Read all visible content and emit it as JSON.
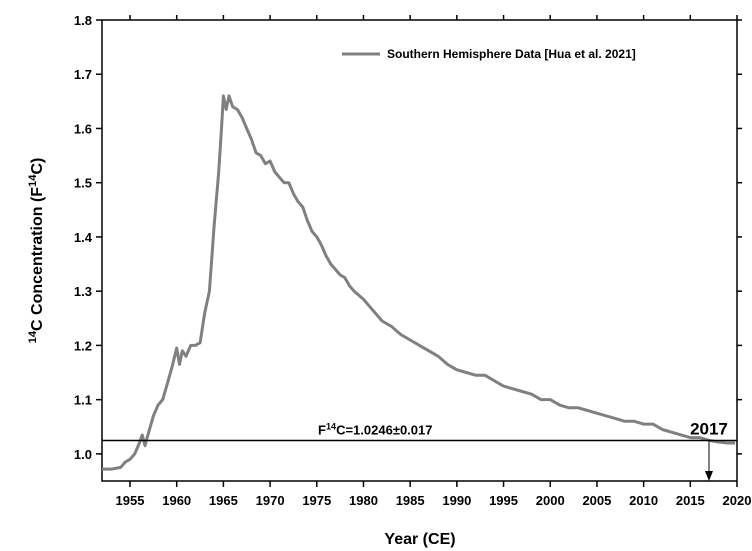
{
  "chart_data": {
    "type": "line",
    "xlabel": "Year (CE)",
    "ylabel": [
      {
        "text": "14",
        "sup": true
      },
      {
        "text": "C Concentration (F",
        "sup": false
      },
      {
        "text": "14",
        "sup": true
      },
      {
        "text": "C)",
        "sup": false
      }
    ],
    "xlim": [
      1952,
      2020
    ],
    "ylim": [
      0.95,
      1.8
    ],
    "xticks": [
      1955,
      1960,
      1965,
      1970,
      1975,
      1980,
      1985,
      1990,
      1995,
      2000,
      2005,
      2010,
      2015,
      2020
    ],
    "yticks": [
      {
        "value": 1,
        "label": "1.0"
      },
      1.1,
      1.2,
      1.3,
      1.4,
      1.5,
      1.6,
      1.7,
      {
        "value": 1.8,
        "label": "1.8"
      }
    ],
    "legend": "top-right",
    "series": [
      {
        "name": "Southern Hemisphere Data [Hua et al. 2021]",
        "color": "#808080",
        "x": [
          1952,
          1953,
          1954,
          1954.5,
          1955,
          1955.5,
          1956,
          1956.3,
          1956.6,
          1957,
          1957.5,
          1958,
          1958.5,
          1959,
          1959.5,
          1960,
          1960.3,
          1960.6,
          1961,
          1961.5,
          1962,
          1962.5,
          1963,
          1963.5,
          1964,
          1964.5,
          1964.8,
          1965,
          1965.3,
          1965.6,
          1966,
          1966.5,
          1967,
          1967.5,
          1968,
          1968.5,
          1969,
          1969.5,
          1970,
          1970.5,
          1971,
          1971.5,
          1972,
          1972.5,
          1973,
          1973.5,
          1974,
          1974.5,
          1975,
          1975.5,
          1976,
          1976.5,
          1977,
          1977.5,
          1978,
          1978.5,
          1979,
          1980,
          1981,
          1982,
          1983,
          1984,
          1985,
          1986,
          1987,
          1988,
          1989,
          1990,
          1991,
          1992,
          1993,
          1994,
          1995,
          1996,
          1997,
          1998,
          1999,
          2000,
          2001,
          2002,
          2003,
          2004,
          2005,
          2006,
          2007,
          2008,
          2009,
          2010,
          2011,
          2012,
          2013,
          2014,
          2015,
          2016,
          2017,
          2018,
          2019,
          2019.8
        ],
        "values": [
          0.972,
          0.972,
          0.975,
          0.985,
          0.99,
          1.0,
          1.02,
          1.035,
          1.015,
          1.04,
          1.07,
          1.09,
          1.1,
          1.13,
          1.16,
          1.195,
          1.165,
          1.19,
          1.18,
          1.2,
          1.2,
          1.205,
          1.26,
          1.3,
          1.42,
          1.52,
          1.6,
          1.66,
          1.635,
          1.66,
          1.64,
          1.635,
          1.62,
          1.6,
          1.58,
          1.555,
          1.55,
          1.535,
          1.54,
          1.52,
          1.51,
          1.5,
          1.5,
          1.48,
          1.465,
          1.455,
          1.43,
          1.41,
          1.4,
          1.385,
          1.365,
          1.35,
          1.34,
          1.33,
          1.325,
          1.31,
          1.3,
          1.285,
          1.265,
          1.245,
          1.235,
          1.22,
          1.21,
          1.2,
          1.19,
          1.18,
          1.165,
          1.155,
          1.15,
          1.145,
          1.145,
          1.135,
          1.125,
          1.12,
          1.115,
          1.11,
          1.1,
          1.1,
          1.09,
          1.085,
          1.085,
          1.08,
          1.075,
          1.07,
          1.065,
          1.06,
          1.06,
          1.055,
          1.055,
          1.045,
          1.04,
          1.035,
          1.03,
          1.03,
          1.025,
          1.022,
          1.02,
          1.02
        ]
      }
    ],
    "hline": 1.0246,
    "hline_label": [
      {
        "text": "F",
        "sup": false
      },
      {
        "text": "14",
        "sup": true
      },
      {
        "text": "C=1.0246±0.017",
        "sup": false
      }
    ],
    "arrow_x": 2017
  }
}
